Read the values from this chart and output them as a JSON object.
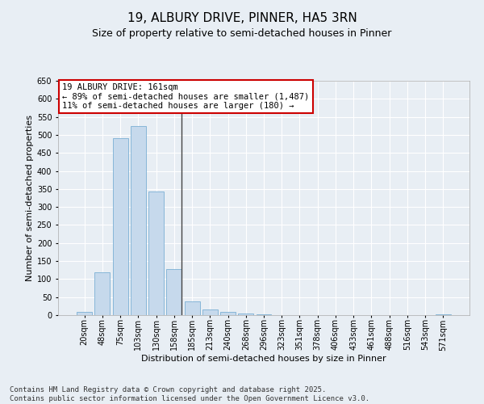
{
  "title": "19, ALBURY DRIVE, PINNER, HA5 3RN",
  "subtitle": "Size of property relative to semi-detached houses in Pinner",
  "xlabel": "Distribution of semi-detached houses by size in Pinner",
  "ylabel": "Number of semi-detached properties",
  "categories": [
    "20sqm",
    "48sqm",
    "75sqm",
    "103sqm",
    "130sqm",
    "158sqm",
    "185sqm",
    "213sqm",
    "240sqm",
    "268sqm",
    "296sqm",
    "323sqm",
    "351sqm",
    "378sqm",
    "406sqm",
    "433sqm",
    "461sqm",
    "488sqm",
    "516sqm",
    "543sqm",
    "571sqm"
  ],
  "values": [
    9,
    119,
    490,
    524,
    344,
    128,
    38,
    15,
    8,
    5,
    2,
    1,
    0,
    0,
    0,
    0,
    0,
    0,
    0,
    0,
    3
  ],
  "bar_color": "#c6d9ec",
  "bar_edge_color": "#7bafd4",
  "marker_bar_index": 5,
  "marker_line_color": "#444444",
  "annotation_text_line1": "19 ALBURY DRIVE: 161sqm",
  "annotation_text_line2": "← 89% of semi-detached houses are smaller (1,487)",
  "annotation_text_line3": "11% of semi-detached houses are larger (180) →",
  "annotation_box_facecolor": "#ffffff",
  "annotation_box_edgecolor": "#cc0000",
  "ylim": [
    0,
    650
  ],
  "yticks": [
    0,
    50,
    100,
    150,
    200,
    250,
    300,
    350,
    400,
    450,
    500,
    550,
    600,
    650
  ],
  "bg_color": "#e8eef4",
  "plot_bg_color": "#e8eef4",
  "grid_color": "#ffffff",
  "footer_line1": "Contains HM Land Registry data © Crown copyright and database right 2025.",
  "footer_line2": "Contains public sector information licensed under the Open Government Licence v3.0.",
  "title_fontsize": 11,
  "subtitle_fontsize": 9,
  "axis_label_fontsize": 8,
  "tick_fontsize": 7,
  "annotation_fontsize": 7.5,
  "footer_fontsize": 6.5
}
